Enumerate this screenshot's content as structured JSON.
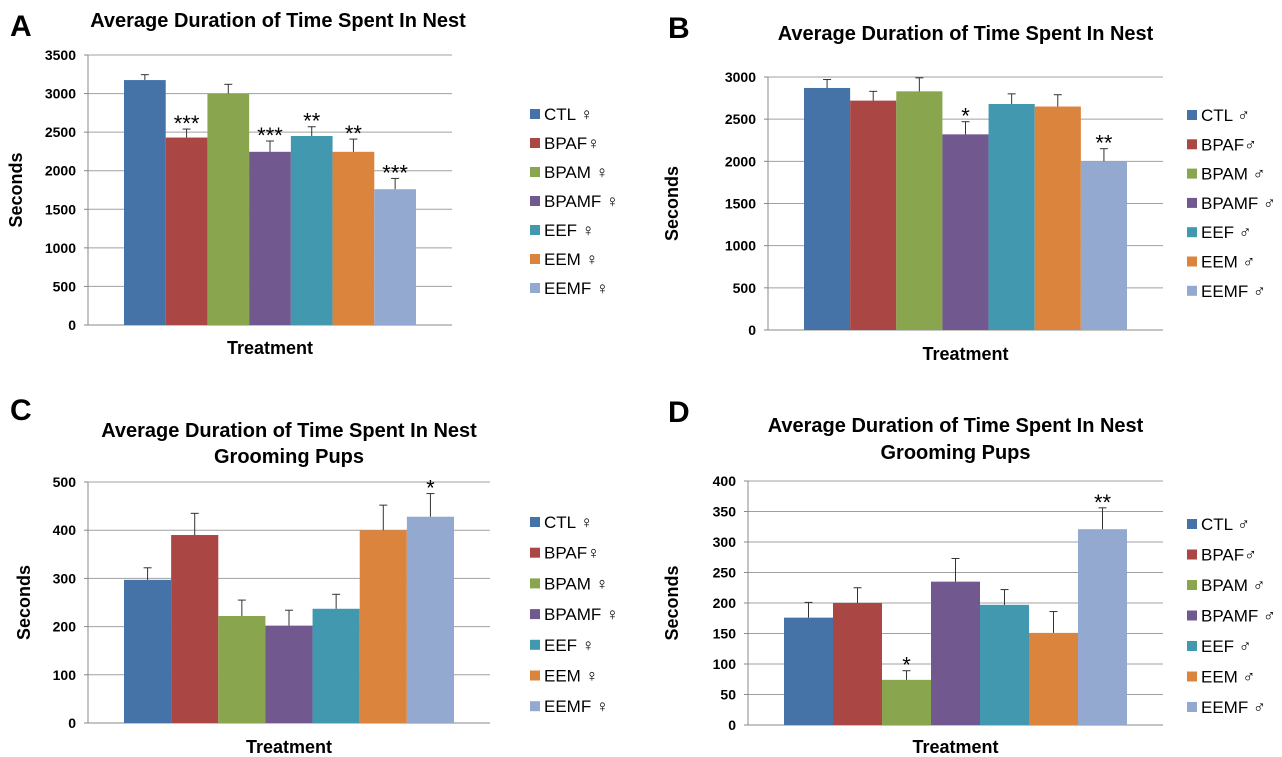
{
  "colors": {
    "CTL": "#4572A7",
    "BPAF": "#AA4643",
    "BPAM": "#89A54E",
    "BPAMF": "#71588F",
    "EEF": "#4198AF",
    "EEM": "#DB843D",
    "EEMF": "#93A9CF",
    "grid": "#a0a0a0",
    "axis": "#888888",
    "text": "#000000"
  },
  "chart_data": [
    {
      "panel_label": "A",
      "type": "bar",
      "title": [
        "Average Duration of Time Spent In Nest"
      ],
      "xlabel": "Treatment",
      "ylabel": "Seconds",
      "ylim": [
        0,
        3500
      ],
      "yticks": [
        0,
        500,
        1000,
        1500,
        2000,
        2500,
        3000,
        3500
      ],
      "grid": true,
      "legend_position": "right",
      "categories": [
        "CTL ♀",
        "BPAF♀",
        "BPAM ♀",
        "BPAMF ♀",
        "EEF ♀",
        "EEM ♀",
        "EEMF ♀"
      ],
      "values": [
        3175,
        2430,
        3000,
        2245,
        2450,
        2245,
        1760
      ],
      "errors": [
        70,
        110,
        120,
        140,
        120,
        165,
        140
      ],
      "significance": [
        "",
        "***",
        "",
        "***",
        "**",
        "**",
        "***"
      ]
    },
    {
      "panel_label": "B",
      "type": "bar",
      "title": [
        "Average Duration of Time Spent In Nest"
      ],
      "xlabel": "Treatment",
      "ylabel": "Seconds",
      "ylim": [
        0,
        3000
      ],
      "yticks": [
        0,
        500,
        1000,
        1500,
        2000,
        2500,
        3000
      ],
      "grid": true,
      "legend_position": "right",
      "categories": [
        "CTL ♂",
        "BPAF♂",
        "BPAM ♂",
        "BPAMF ♂",
        "EEF ♂",
        "EEM ♂",
        "EEMF ♂"
      ],
      "values": [
        2870,
        2720,
        2830,
        2320,
        2680,
        2650,
        2000
      ],
      "errors": [
        100,
        110,
        160,
        150,
        120,
        140,
        150
      ],
      "significance": [
        "",
        "",
        "",
        "*",
        "",
        "",
        "**"
      ]
    },
    {
      "panel_label": "C",
      "type": "bar",
      "title": [
        "Average Duration of Time Spent In Nest",
        "Grooming Pups"
      ],
      "xlabel": "Treatment",
      "ylabel": "Seconds",
      "ylim": [
        0,
        500
      ],
      "yticks": [
        0,
        100,
        200,
        300,
        400,
        500
      ],
      "grid": true,
      "legend_position": "right",
      "categories": [
        "CTL ♀",
        "BPAF♀",
        "BPAM ♀",
        "BPAMF ♀",
        "EEF ♀",
        "EEM ♀",
        "EEMF ♀"
      ],
      "values": [
        297,
        390,
        222,
        202,
        237,
        400,
        428
      ],
      "errors": [
        25,
        45,
        33,
        32,
        30,
        52,
        48
      ],
      "significance": [
        "",
        "",
        "",
        "",
        "",
        "",
        "*"
      ]
    },
    {
      "panel_label": "D",
      "type": "bar",
      "title": [
        "Average Duration of Time Spent In Nest",
        "Grooming Pups"
      ],
      "xlabel": "Treatment",
      "ylabel": "Seconds",
      "ylim": [
        0,
        400
      ],
      "yticks": [
        0,
        50,
        100,
        150,
        200,
        250,
        300,
        350,
        400
      ],
      "grid": true,
      "legend_position": "right",
      "categories": [
        "CTL ♂",
        "BPAF♂",
        "BPAM ♂",
        "BPAMF ♂",
        "EEF ♂",
        "EEM ♂",
        "EEMF ♂"
      ],
      "values": [
        176,
        200,
        74,
        235,
        197,
        151,
        321
      ],
      "errors": [
        25,
        25,
        15,
        38,
        25,
        35,
        35
      ],
      "significance": [
        "",
        "",
        "*",
        "",
        "",
        "",
        "**"
      ]
    }
  ]
}
